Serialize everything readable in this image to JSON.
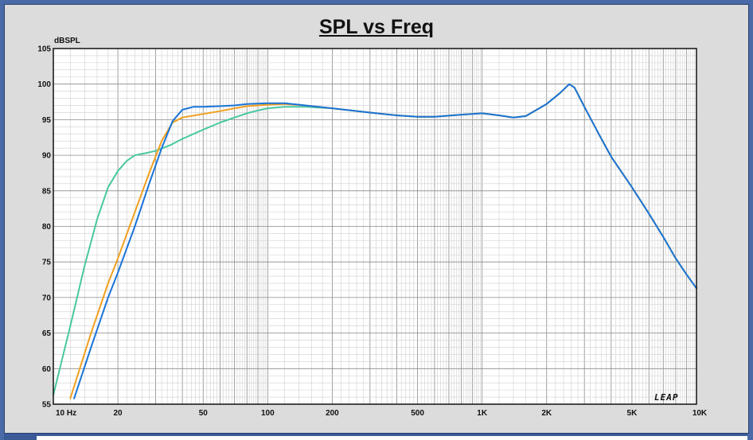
{
  "chart_data": {
    "type": "line",
    "title": "SPL vs Freq",
    "ylabel": "dBSPL",
    "xlabel": "",
    "x_scale": "log",
    "xlim": [
      10,
      10000
    ],
    "ylim": [
      55,
      105
    ],
    "grid": true,
    "y_ticks": [
      55,
      60,
      65,
      70,
      75,
      80,
      85,
      90,
      95,
      100,
      105
    ],
    "x_ticks": [
      {
        "value": 10,
        "label": "10  Hz"
      },
      {
        "value": 20,
        "label": "20"
      },
      {
        "value": 50,
        "label": "50"
      },
      {
        "value": 100,
        "label": "100"
      },
      {
        "value": 200,
        "label": "200"
      },
      {
        "value": 500,
        "label": "500"
      },
      {
        "value": 1000,
        "label": "1K"
      },
      {
        "value": 2000,
        "label": "2K"
      },
      {
        "value": 5000,
        "label": "5K"
      },
      {
        "value": 10000,
        "label": "10K"
      }
    ],
    "brand": "LEAP",
    "series": [
      {
        "color": "#48c8a0",
        "points": [
          [
            10,
            56.3
          ],
          [
            12,
            66
          ],
          [
            14,
            74.5
          ],
          [
            16,
            81
          ],
          [
            18,
            85.5
          ],
          [
            20,
            87.8
          ],
          [
            22,
            89.2
          ],
          [
            24,
            90
          ],
          [
            27,
            90.3
          ],
          [
            30,
            90.6
          ],
          [
            35,
            91.4
          ],
          [
            40,
            92.3
          ],
          [
            50,
            93.6
          ],
          [
            60,
            94.6
          ],
          [
            70,
            95.3
          ],
          [
            80,
            95.9
          ],
          [
            90,
            96.3
          ],
          [
            100,
            96.6
          ],
          [
            120,
            96.8
          ],
          [
            150,
            96.8
          ],
          [
            200,
            96.6
          ],
          [
            300,
            96
          ],
          [
            400,
            95.6
          ],
          [
            500,
            95.4
          ],
          [
            600,
            95.4
          ],
          [
            800,
            95.7
          ],
          [
            1000,
            95.9
          ],
          [
            1200,
            95.6
          ],
          [
            1400,
            95.3
          ],
          [
            1600,
            95.5
          ],
          [
            2000,
            97.2
          ],
          [
            2300,
            98.7
          ],
          [
            2550,
            100
          ],
          [
            2700,
            99.5
          ],
          [
            3000,
            96.8
          ],
          [
            3500,
            93
          ],
          [
            4000,
            89.8
          ],
          [
            5000,
            85.5
          ],
          [
            6000,
            81.8
          ],
          [
            7000,
            78.5
          ],
          [
            8000,
            75.5
          ],
          [
            9000,
            73.2
          ],
          [
            10000,
            71.3
          ]
        ]
      },
      {
        "color": "#f0a020",
        "points": [
          [
            12,
            55.8
          ],
          [
            15,
            65
          ],
          [
            18,
            72
          ],
          [
            20,
            75.5
          ],
          [
            24,
            82
          ],
          [
            28,
            87.5
          ],
          [
            32,
            92
          ],
          [
            36,
            94.6
          ],
          [
            40,
            95.3
          ],
          [
            50,
            95.8
          ],
          [
            60,
            96.2
          ],
          [
            70,
            96.6
          ],
          [
            80,
            96.9
          ],
          [
            100,
            97.1
          ],
          [
            120,
            97.2
          ],
          [
            150,
            97
          ],
          [
            200,
            96.6
          ],
          [
            300,
            96
          ],
          [
            400,
            95.6
          ],
          [
            500,
            95.4
          ],
          [
            600,
            95.4
          ],
          [
            800,
            95.7
          ],
          [
            1000,
            95.9
          ],
          [
            1200,
            95.6
          ],
          [
            1400,
            95.3
          ],
          [
            1600,
            95.5
          ],
          [
            2000,
            97.2
          ],
          [
            2300,
            98.7
          ],
          [
            2550,
            100
          ],
          [
            2700,
            99.5
          ],
          [
            3000,
            96.8
          ],
          [
            3500,
            93
          ],
          [
            4000,
            89.8
          ],
          [
            5000,
            85.5
          ],
          [
            6000,
            81.8
          ],
          [
            7000,
            78.5
          ],
          [
            8000,
            75.5
          ],
          [
            9000,
            73.2
          ],
          [
            10000,
            71.3
          ]
        ]
      },
      {
        "color": "#1a74d8",
        "points": [
          [
            12.5,
            55.8
          ],
          [
            15,
            63
          ],
          [
            18,
            70
          ],
          [
            20,
            73.5
          ],
          [
            24,
            80
          ],
          [
            28,
            86
          ],
          [
            32,
            91
          ],
          [
            36,
            94.8
          ],
          [
            40,
            96.4
          ],
          [
            45,
            96.8
          ],
          [
            50,
            96.8
          ],
          [
            60,
            96.9
          ],
          [
            70,
            97
          ],
          [
            80,
            97.2
          ],
          [
            100,
            97.3
          ],
          [
            120,
            97.3
          ],
          [
            150,
            97
          ],
          [
            200,
            96.6
          ],
          [
            300,
            96
          ],
          [
            400,
            95.6
          ],
          [
            500,
            95.4
          ],
          [
            600,
            95.4
          ],
          [
            800,
            95.7
          ],
          [
            1000,
            95.9
          ],
          [
            1200,
            95.6
          ],
          [
            1400,
            95.3
          ],
          [
            1600,
            95.5
          ],
          [
            2000,
            97.2
          ],
          [
            2300,
            98.7
          ],
          [
            2550,
            100
          ],
          [
            2700,
            99.5
          ],
          [
            3000,
            96.8
          ],
          [
            3500,
            93
          ],
          [
            4000,
            89.8
          ],
          [
            5000,
            85.5
          ],
          [
            6000,
            81.8
          ],
          [
            7000,
            78.5
          ],
          [
            8000,
            75.5
          ],
          [
            9000,
            73.2
          ],
          [
            10000,
            71.3
          ]
        ]
      }
    ]
  }
}
